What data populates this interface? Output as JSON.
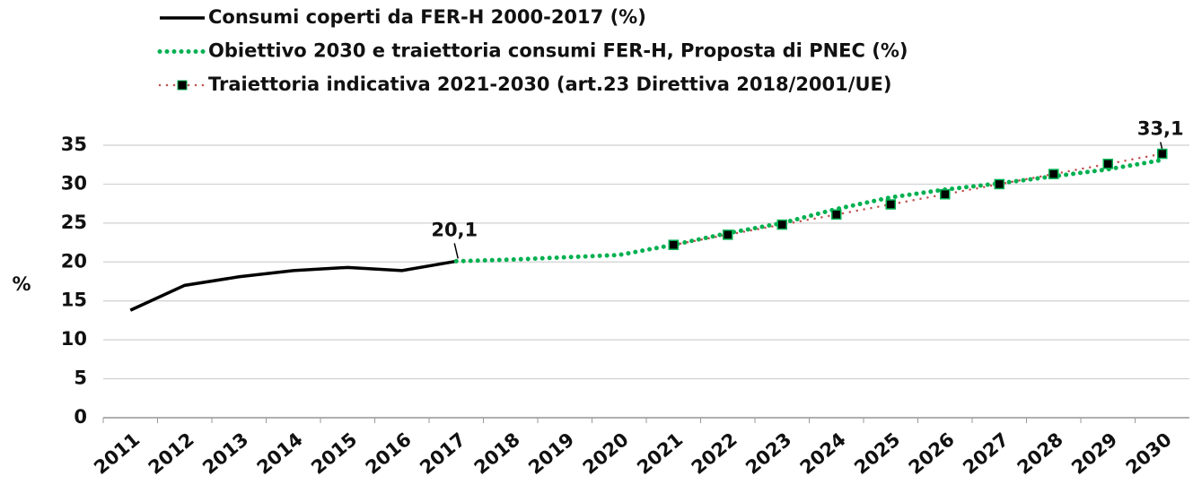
{
  "chart_data": {
    "type": "line",
    "ylabel": "%",
    "categories": [
      "2011",
      "2012",
      "2013",
      "2014",
      "2015",
      "2016",
      "2017",
      "2018",
      "2019",
      "2020",
      "2021",
      "2022",
      "2023",
      "2024",
      "2025",
      "2026",
      "2027",
      "2028",
      "2029",
      "2030"
    ],
    "series": [
      {
        "name": "Consumi  coperti da FER-H 2000-2017 (%)",
        "color": "#000000",
        "dash": "solid",
        "values": [
          13.8,
          17.0,
          18.1,
          18.9,
          19.3,
          18.9,
          20.1,
          null,
          null,
          null,
          null,
          null,
          null,
          null,
          null,
          null,
          null,
          null,
          null,
          null
        ],
        "value_labels": [
          null,
          null,
          null,
          null,
          null,
          null,
          "20,1",
          null,
          null,
          null,
          null,
          null,
          null,
          null,
          null,
          null,
          null,
          null,
          null,
          null
        ]
      },
      {
        "name": "Obiettivo 2030 e traiettoria consumi FER-H, Proposta di PNEC (%)",
        "color": "#00b050",
        "dash": "dot",
        "values": [
          null,
          null,
          null,
          null,
          null,
          null,
          20.1,
          20.3,
          20.6,
          20.9,
          22.2,
          23.7,
          25.0,
          26.8,
          28.3,
          29.3,
          30.1,
          31.0,
          31.9,
          33.1
        ],
        "value_labels": [
          null,
          null,
          null,
          null,
          null,
          null,
          null,
          null,
          null,
          null,
          null,
          null,
          null,
          null,
          null,
          null,
          null,
          null,
          null,
          "33,1"
        ]
      },
      {
        "name": "Traiettoria indicativa 2021-2030 (art.23 Direttiva 2018/2001/UE)",
        "color": "#c0504d",
        "dash": "dot",
        "markers": true,
        "values": [
          null,
          null,
          null,
          null,
          null,
          null,
          null,
          null,
          null,
          null,
          22.2,
          23.5,
          24.8,
          26.1,
          27.4,
          28.7,
          30.0,
          31.3,
          32.6,
          33.9
        ]
      }
    ],
    "ylim": [
      0,
      35
    ],
    "yticks": [
      0,
      5,
      10,
      15,
      20,
      25,
      30,
      35
    ],
    "grid": true
  }
}
